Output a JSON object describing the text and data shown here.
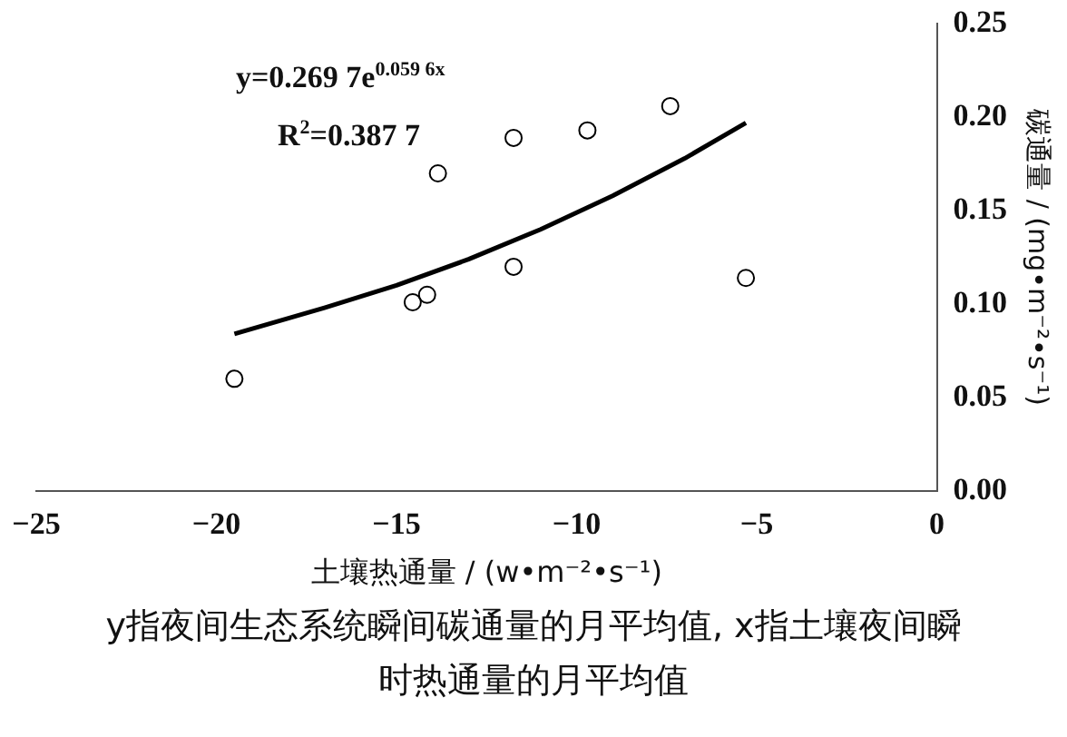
{
  "chart_data": {
    "type": "scatter",
    "xlabel": "土壤热通量 / (w•m⁻²•s⁻¹)",
    "ylabel": "碳通量 / (mg•m⁻²•s⁻¹)",
    "xlim": [
      -25,
      0
    ],
    "xticks": [
      -25,
      -20,
      -15,
      -10,
      -5,
      0
    ],
    "ylim": [
      0,
      0.25
    ],
    "yticks": [
      {
        "value": 0,
        "label": "0.00"
      },
      {
        "value": 0.05,
        "label": "0.05"
      },
      {
        "value": 0.1,
        "label": "0.10"
      },
      {
        "value": 0.15,
        "label": "0.15"
      },
      {
        "value": 0.2,
        "label": "0.20"
      },
      {
        "value": 0.25,
        "label": "0.25"
      }
    ],
    "grid": false,
    "legend": false,
    "marker": "circle",
    "x": [
      -19.5,
      -14.55,
      -14.15,
      -13.85,
      -11.75,
      -11.75,
      -9.7,
      -7.4,
      -5.3
    ],
    "series": [
      {
        "color": "#000000",
        "values": [
          0.06,
          0.101,
          0.105,
          0.17,
          0.189,
          0.12,
          0.193,
          0.206,
          0.114
        ]
      },
      {
        "type": "line",
        "color": "#000000",
        "marker": "none",
        "line_style": "solid",
        "x": [
          -19.5,
          -17,
          -15,
          -13,
          -11,
          -9,
          -7,
          -5.3
        ],
        "values": [
          0.084,
          0.098,
          0.11,
          0.124,
          0.14,
          0.158,
          0.178,
          0.197
        ]
      }
    ],
    "annotations": [
      "y=0.269 7e$^{0.059 6x}$",
      "R$^{2}$=0.387 7",
      "y指夜间生态系统瞬间碳通量的月平均值, x指土壤夜间瞬时热通量的月平均值"
    ]
  }
}
